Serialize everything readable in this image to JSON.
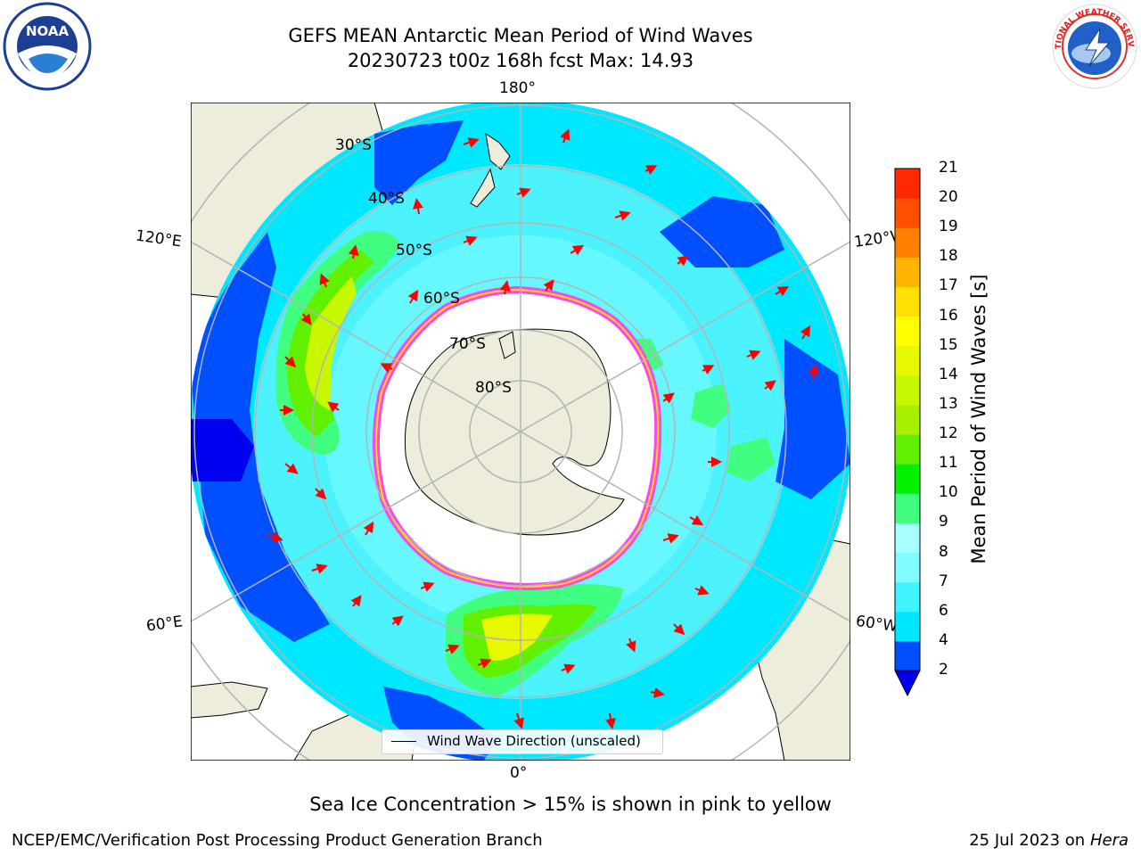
{
  "title": {
    "line1": "GEFS MEAN Antarctic Mean Period of Wind Waves",
    "line2": "20230723 t00z 168h fcst   Max: 14.93"
  },
  "logos": {
    "left": {
      "icon": "noaa-logo",
      "text": "NOAA"
    },
    "right": {
      "icon": "nws-logo",
      "text": "NATIONAL WEATHER SERVICE"
    }
  },
  "map": {
    "projection": "south-polar-stereographic",
    "longitude_labels": {
      "top": "180°",
      "bottom": "0°",
      "left_upper": "120°E",
      "left_lower": "60°E",
      "right_upper": "120°W",
      "right_lower": "60°W"
    },
    "latitude_labels": [
      "30°S",
      "40°S",
      "50°S",
      "60°S",
      "70°S",
      "80°S"
    ],
    "legend": "Wind Wave Direction (unscaled)",
    "colors": {
      "land": "#eeecda",
      "ice_edge": "#ff44ee",
      "arrow": "#ff0000",
      "grid": "#b4b4b4"
    }
  },
  "colorbar": {
    "label": "Mean Period of Wind Waves [s]",
    "ticks": [
      "2",
      "4",
      "6",
      "7",
      "8",
      "9",
      "10",
      "11",
      "12",
      "13",
      "14",
      "15",
      "16",
      "17",
      "18",
      "19",
      "20",
      "21"
    ],
    "colors": [
      "#0050ff",
      "#00e8ff",
      "#40f4ff",
      "#80fbff",
      "#a8ffff",
      "#40ff80",
      "#00f000",
      "#60f000",
      "#a8f000",
      "#c8f800",
      "#e8f800",
      "#ffff00",
      "#ffe000",
      "#ffb400",
      "#ff8000",
      "#ff5000",
      "#ff2800",
      "#ff0000"
    ],
    "extend_color": "#0000f0"
  },
  "notes": {
    "ice": "Sea Ice Concentration > 15% is shown in pink to yellow",
    "org": "NCEP/EMC/Verification Post Processing Product Generation Branch",
    "date": "25 Jul 2023 on ",
    "machine": "Hera"
  }
}
